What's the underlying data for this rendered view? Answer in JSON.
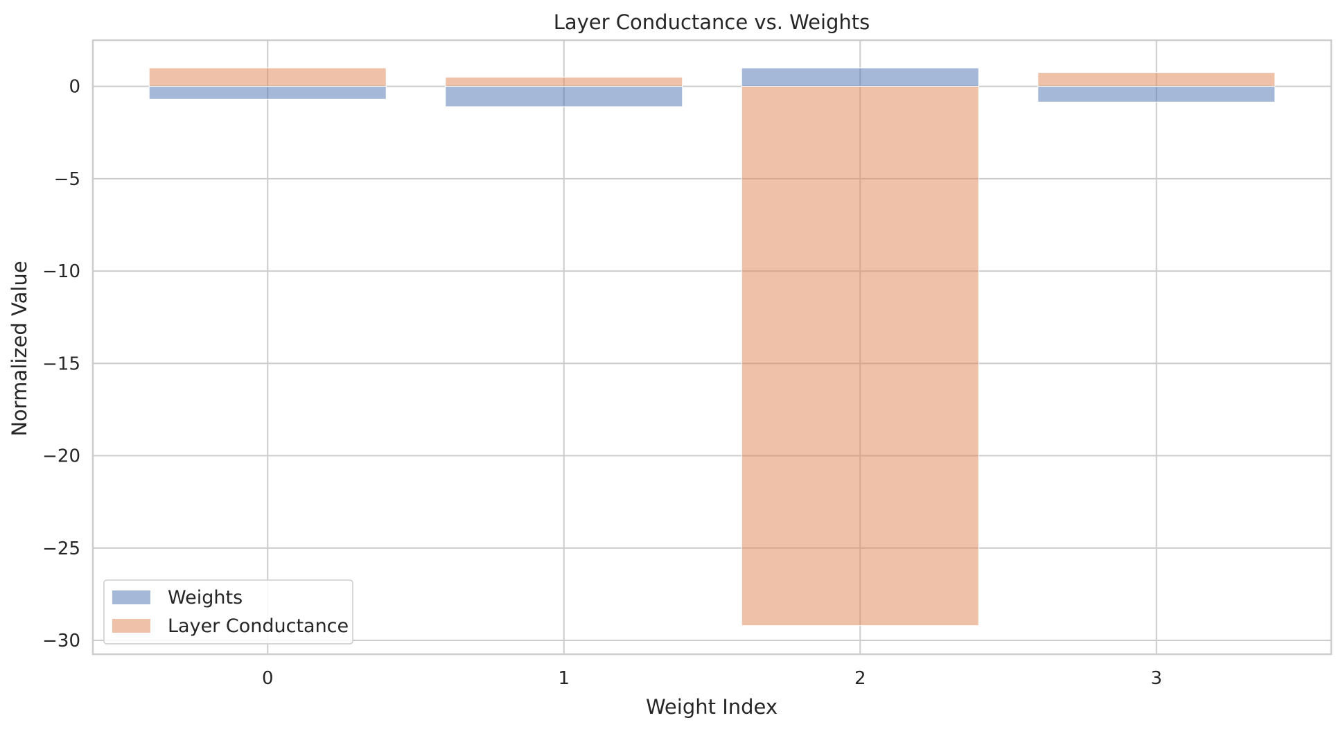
{
  "chart_data": {
    "type": "bar",
    "title": "Layer Conductance vs. Weights",
    "xlabel": "Weight Index",
    "ylabel": "Normalized Value",
    "categories": [
      "0",
      "1",
      "2",
      "3"
    ],
    "series": [
      {
        "name": "Weights",
        "values": [
          -0.7,
          -1.1,
          1.0,
          -0.85
        ],
        "color": "#4c72b0"
      },
      {
        "name": "Layer Conductance",
        "values": [
          1.0,
          0.5,
          -29.2,
          0.75
        ],
        "color": "#dd8452"
      }
    ],
    "bar_opacity": 0.5,
    "ylim": [
      -30.75,
      2.5
    ],
    "yticks": [
      0,
      -5,
      -10,
      -15,
      -20,
      -25,
      -30
    ],
    "ytick_labels": [
      "0",
      "−5",
      "−10",
      "−15",
      "−20",
      "−25",
      "−30"
    ],
    "xlim": [
      -0.59,
      3.59
    ],
    "grid": true,
    "legend_placement": "lower-left",
    "grid_color": "#cccccc"
  }
}
